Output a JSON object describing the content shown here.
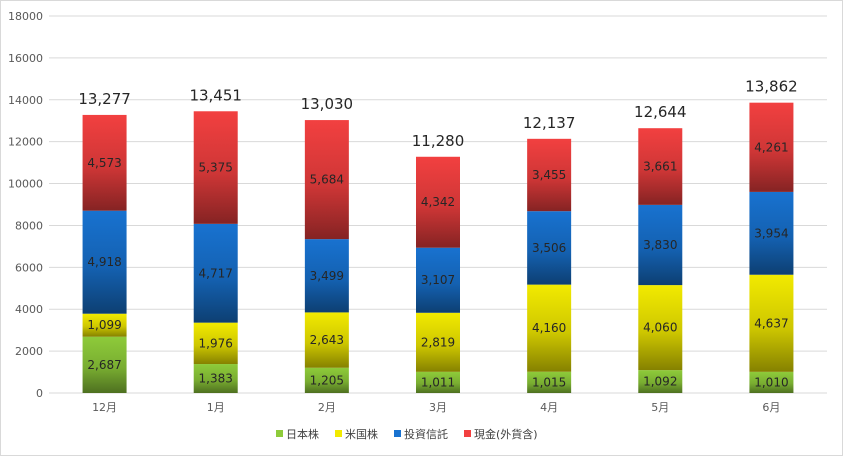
{
  "chart_data": {
    "type": "bar",
    "stacked": true,
    "categories": [
      "12月",
      "1月",
      "2月",
      "3月",
      "4月",
      "5月",
      "6月"
    ],
    "series": [
      {
        "name": "日本株",
        "color": "#8ecb3a",
        "values": [
          2687,
          1383,
          1205,
          1011,
          1015,
          1092,
          1010
        ]
      },
      {
        "name": "米国株",
        "color": "#f2ea00",
        "values": [
          1099,
          1976,
          2643,
          2819,
          4160,
          4060,
          4637
        ]
      },
      {
        "name": "投資信託",
        "color": "#1872d0",
        "values": [
          4918,
          4717,
          3499,
          3107,
          3506,
          3830,
          3954
        ]
      },
      {
        "name": "現金(外貨含)",
        "color": "#f24040",
        "values": [
          4573,
          5375,
          5684,
          4342,
          3455,
          3661,
          4261
        ]
      }
    ],
    "totals": [
      13277,
      13451,
      13030,
      11280,
      12137,
      12644,
      13862
    ],
    "ylim": [
      0,
      18000
    ],
    "yticks": [
      0,
      2000,
      4000,
      6000,
      8000,
      10000,
      12000,
      14000,
      16000,
      18000
    ],
    "grid": true,
    "legend_position": "bottom"
  }
}
